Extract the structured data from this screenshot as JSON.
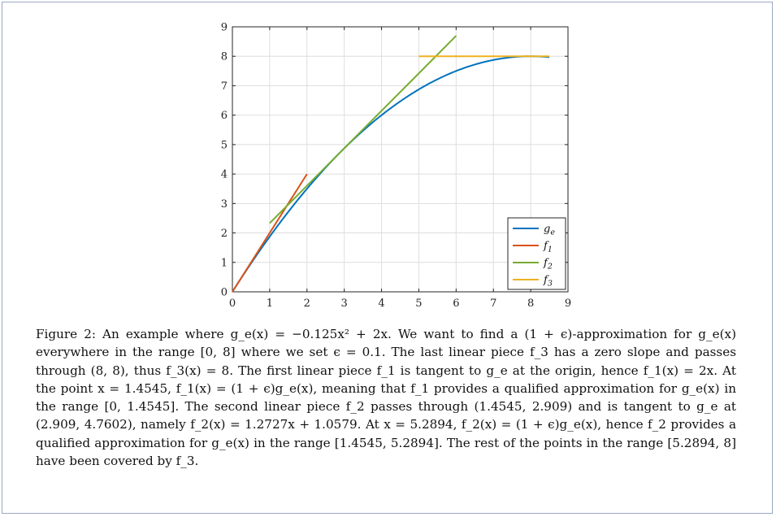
{
  "chart_data": {
    "type": "line",
    "title": "",
    "xlabel": "",
    "ylabel": "",
    "xlim": [
      0,
      9
    ],
    "ylim": [
      0,
      9
    ],
    "xticks": [
      "0",
      "1",
      "2",
      "3",
      "4",
      "5",
      "6",
      "7",
      "8",
      "9"
    ],
    "yticks": [
      "0",
      "1",
      "2",
      "3",
      "4",
      "5",
      "6",
      "7",
      "8",
      "9"
    ],
    "grid": true,
    "legend_position": "bottom-right",
    "series": [
      {
        "name": "g_e",
        "color": "#0072bd",
        "function": "-0.125x^2 + 2x",
        "x_range": [
          0,
          8.5
        ]
      },
      {
        "name": "f_1",
        "color": "#d95319",
        "x": [
          0,
          2
        ],
        "y": [
          0,
          4
        ]
      },
      {
        "name": "f_2",
        "color": "#77ac30",
        "x": [
          1,
          6
        ],
        "y": [
          2.3306,
          8.6941
        ]
      },
      {
        "name": "f_3",
        "color": "#edb120",
        "x": [
          5,
          8.5
        ],
        "y": [
          8,
          8
        ]
      }
    ]
  },
  "caption": {
    "text": "Figure 2: An example where g_e(x) = −0.125x² + 2x. We want to find a (1 + ϵ)-approximation for g_e(x) everywhere in the range [0, 8] where we set ϵ = 0.1. The last linear piece f_3 has a zero slope and passes through (8, 8), thus f_3(x) = 8. The first linear piece f_1 is tangent to g_e at the origin, hence f_1(x) = 2x. At the point x = 1.4545, f_1(x) = (1 + ϵ)g_e(x), meaning that f_1 provides a qualified approximation for g_e(x) in the range [0, 1.4545]. The second linear piece f_2 passes through (1.4545, 2.909) and is tangent to g_e at (2.909, 4.7602), namely f_2(x) = 1.2727x + 1.0579. At x = 5.2894, f_2(x) = (1 + ϵ)g_e(x), hence f_2 provides a qualified approximation for g_e(x) in the range [1.4545, 5.2894]. The rest of the points in the range [5.2894, 8] have been covered by f_3."
  }
}
